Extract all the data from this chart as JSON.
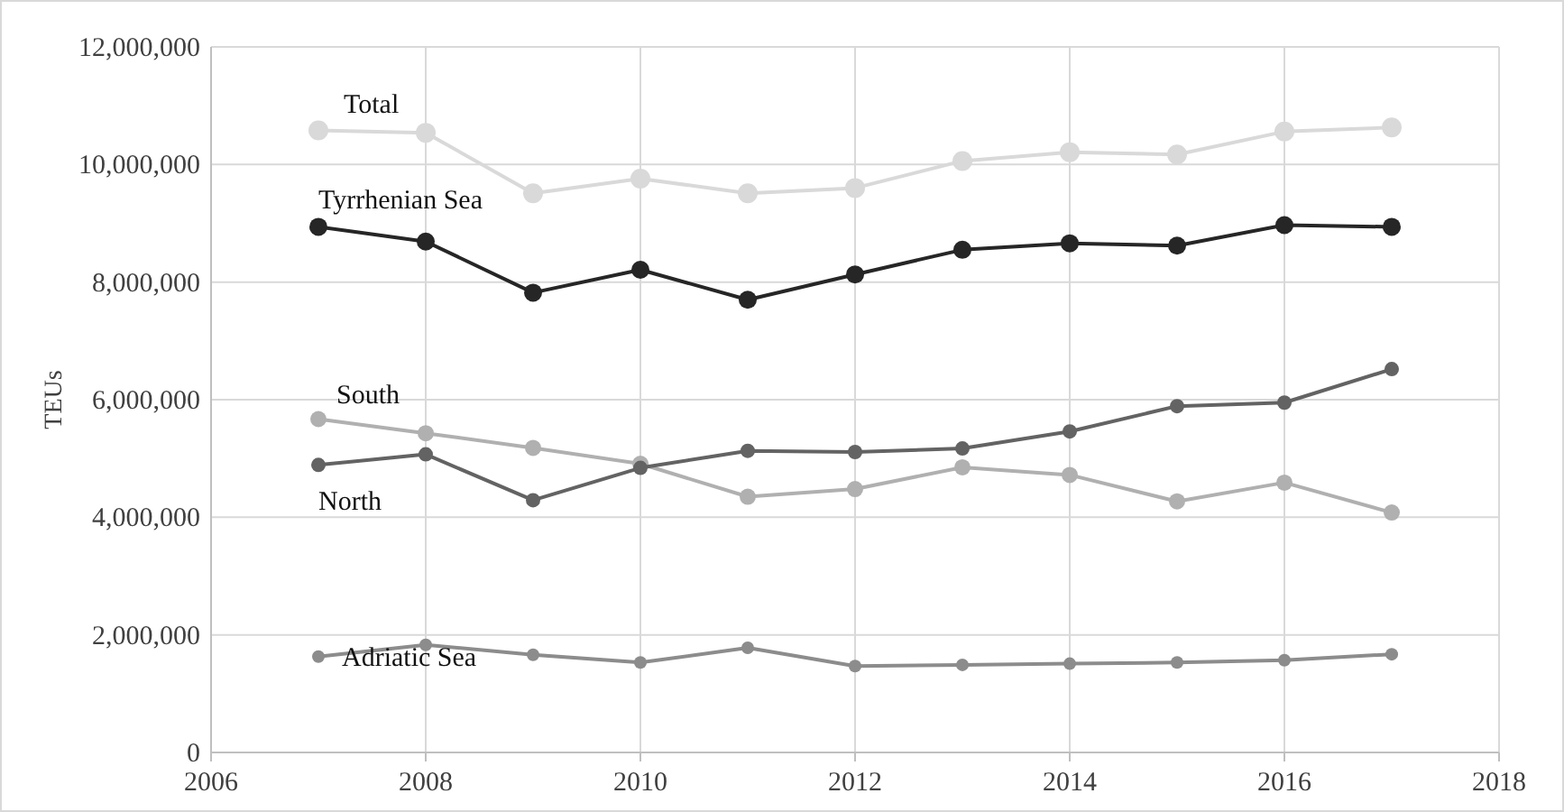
{
  "chart_data": {
    "type": "line",
    "ylabel": "TEUs",
    "x": [
      2007,
      2008,
      2009,
      2010,
      2011,
      2012,
      2013,
      2014,
      2015,
      2016,
      2017
    ],
    "series": [
      {
        "name": "Total",
        "color": "#d9d9d9",
        "values": [
          10580000,
          10540000,
          9510000,
          9760000,
          9510000,
          9600000,
          10060000,
          10210000,
          10170000,
          10560000,
          10630000
        ]
      },
      {
        "name": "Tyrrhenian Sea",
        "color": "#262626",
        "values": [
          8940000,
          8690000,
          7820000,
          8210000,
          7700000,
          8130000,
          8550000,
          8660000,
          8620000,
          8970000,
          8940000
        ]
      },
      {
        "name": "South",
        "color": "#b0b0b0",
        "values": [
          5670000,
          5430000,
          5180000,
          4910000,
          4350000,
          4480000,
          4850000,
          4720000,
          4270000,
          4590000,
          4080000
        ]
      },
      {
        "name": "North",
        "color": "#636363",
        "values": [
          4890000,
          5070000,
          4290000,
          4840000,
          5130000,
          5110000,
          5170000,
          5460000,
          5890000,
          5950000,
          6520000
        ]
      },
      {
        "name": "Adriatic Sea",
        "color": "#8c8c8c",
        "values": [
          1630000,
          1830000,
          1660000,
          1530000,
          1780000,
          1470000,
          1490000,
          1510000,
          1530000,
          1570000,
          1670000
        ]
      }
    ],
    "xlim": [
      2006,
      2018
    ],
    "xticks": [
      2006,
      2008,
      2010,
      2012,
      2014,
      2016,
      2018
    ],
    "ylim": [
      0,
      12000000
    ],
    "yticks": [
      {
        "value": 0,
        "label": "0"
      },
      {
        "value": 2000000,
        "label": "2,000,000"
      },
      {
        "value": 4000000,
        "label": "4,000,000"
      },
      {
        "value": 6000000,
        "label": "6,000,000"
      },
      {
        "value": 8000000,
        "label": "8,000,000"
      },
      {
        "value": 10000000,
        "label": "10,000,000"
      },
      {
        "value": 12000000,
        "label": "12,000,000"
      }
    ],
    "grid": true,
    "legend": false,
    "marker": "circle",
    "line_style": "solid"
  }
}
